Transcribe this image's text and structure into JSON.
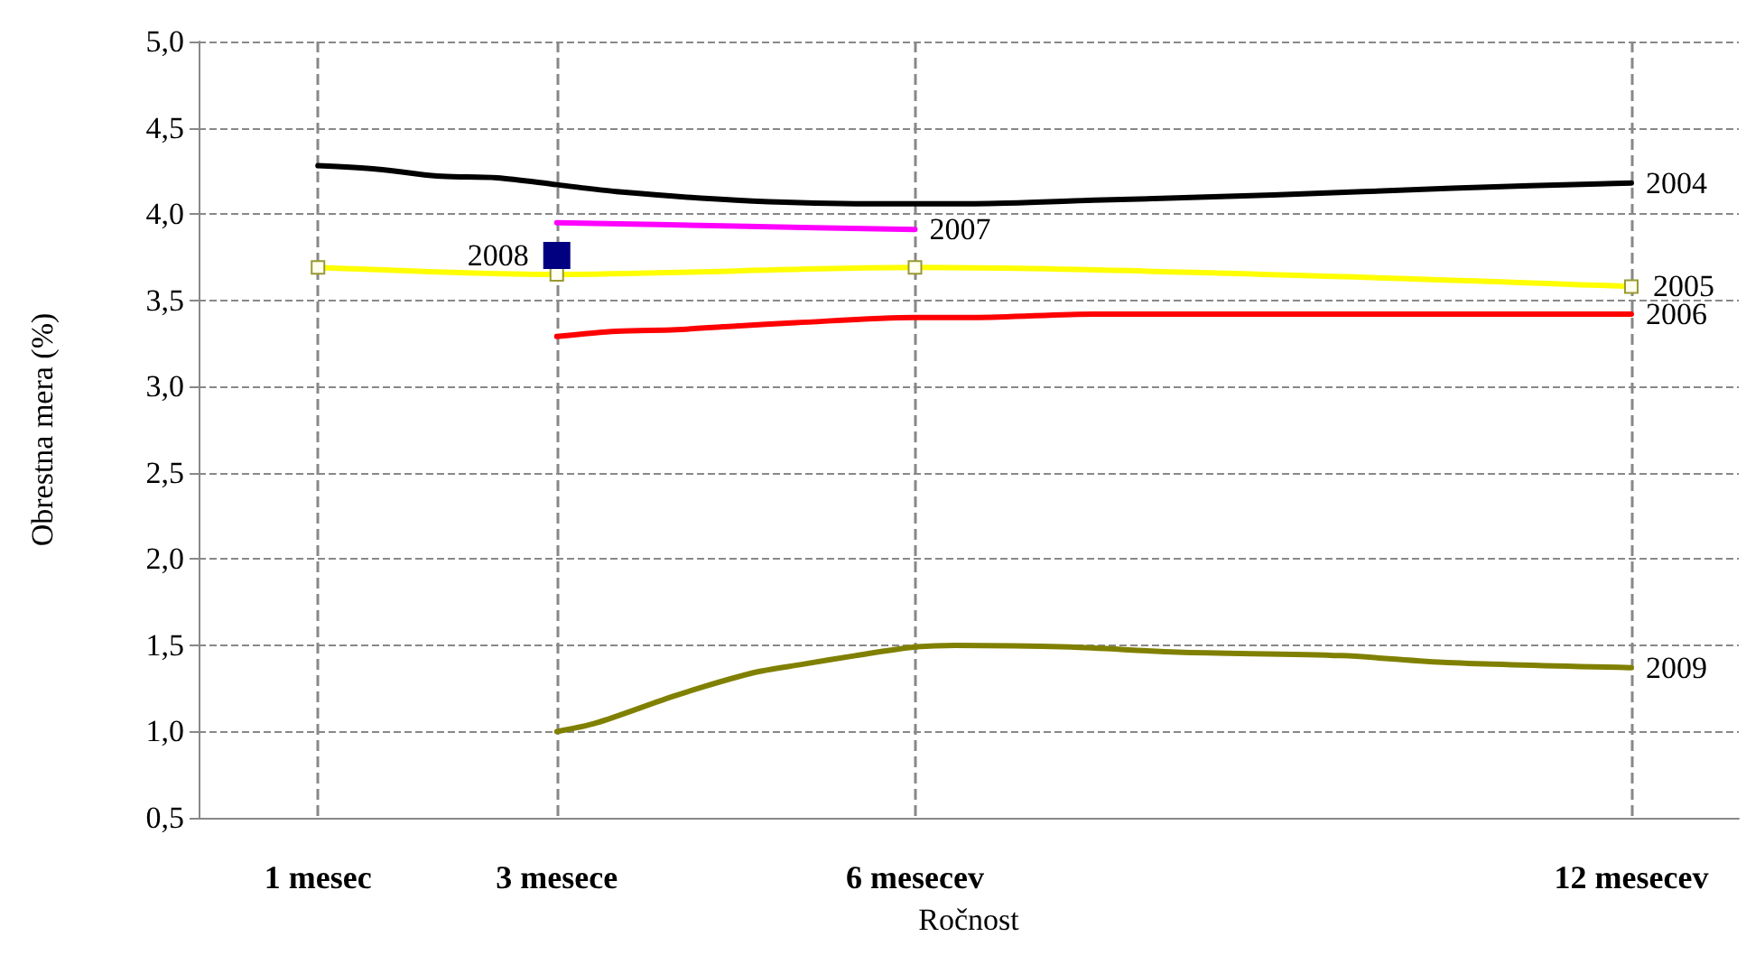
{
  "chart_data": {
    "type": "line",
    "xlabel": "Ročnost",
    "ylabel": "Obrestna mera (%)",
    "xlim": [
      0,
      12.9
    ],
    "xticks": [
      {
        "value": 1,
        "label": "1 mesec"
      },
      {
        "value": 3,
        "label": "3 mesece"
      },
      {
        "value": 6,
        "label": "6 mesecev"
      },
      {
        "value": 12,
        "label": "12 mesecev"
      }
    ],
    "ylim": [
      0.5,
      5
    ],
    "yticks": [
      {
        "value": 0.5,
        "label": "0,5"
      },
      {
        "value": 1,
        "label": "1,0"
      },
      {
        "value": 1.5,
        "label": "1,5"
      },
      {
        "value": 2,
        "label": "2,0"
      },
      {
        "value": 2.5,
        "label": "2,5"
      },
      {
        "value": 3,
        "label": "3,0"
      },
      {
        "value": 3.5,
        "label": "3,5"
      },
      {
        "value": 4,
        "label": "4,0"
      },
      {
        "value": 4.5,
        "label": "4,5"
      },
      {
        "value": 5,
        "label": "5,0"
      }
    ],
    "grid": true,
    "legend": false,
    "line_style": "solid",
    "series": [
      {
        "name": "2004",
        "color": "#000000",
        "marker": "none",
        "x": [
          1,
          1.5,
          2,
          2.5,
          3,
          3.5,
          4.5,
          5.5,
          6.5,
          7.5,
          9,
          10.5,
          12
        ],
        "values": [
          4.28,
          4.26,
          4.22,
          4.21,
          4.17,
          4.13,
          4.08,
          4.06,
          4.06,
          4.08,
          4.11,
          4.15,
          4.18
        ]
      },
      {
        "name": "2007",
        "color": "#ff00ff",
        "marker": "none",
        "x": [
          3,
          4.5,
          6
        ],
        "values": [
          3.95,
          3.93,
          3.91
        ]
      },
      {
        "name": "2005",
        "color": "#ffff00",
        "marker": "square",
        "x": [
          1,
          3,
          6,
          12
        ],
        "values": [
          3.69,
          3.65,
          3.69,
          3.58
        ]
      },
      {
        "name": "2006",
        "color": "#ff0000",
        "marker": "none",
        "x": [
          3,
          3.5,
          4,
          4.5,
          5,
          6,
          6.5,
          7.5,
          12
        ],
        "values": [
          3.29,
          3.32,
          3.33,
          3.35,
          3.37,
          3.4,
          3.4,
          3.42,
          3.42
        ]
      },
      {
        "name": "2009",
        "color": "#808000",
        "marker": "none",
        "x": [
          3,
          3.33,
          4,
          4.64,
          5.06,
          5.5,
          6,
          6.34,
          7.3,
          8.2,
          9.57,
          10.46,
          12
        ],
        "values": [
          1.0,
          1.05,
          1.21,
          1.34,
          1.39,
          1.44,
          1.49,
          1.5,
          1.49,
          1.46,
          1.44,
          1.4,
          1.37
        ]
      },
      {
        "name": "2008",
        "color": "#000080",
        "marker": "square",
        "x": [
          3
        ],
        "values": [
          3.76
        ]
      }
    ]
  }
}
